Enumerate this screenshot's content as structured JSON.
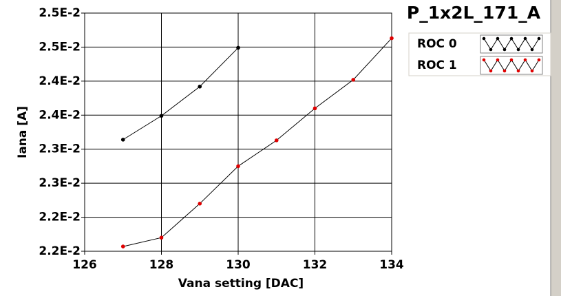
{
  "chart_data": {
    "type": "line",
    "title": "P_1x2L_171_A",
    "x_label": "Vana setting [DAC]",
    "y_label": "Iana [A]",
    "series": [
      {
        "name": "ROC 0",
        "color": "#000000",
        "x": [
          127,
          128,
          129,
          130
        ],
        "values": [
          0.02364,
          0.02399,
          0.02442,
          0.02499
        ]
      },
      {
        "name": "ROC 1",
        "color": "#e00000",
        "x": [
          127,
          128,
          129,
          130,
          131,
          132,
          133,
          134
        ],
        "values": [
          0.02207,
          0.0222,
          0.0227,
          0.02325,
          0.02363,
          0.0241,
          0.02452,
          0.02513
        ]
      }
    ],
    "xlim": [
      126,
      134
    ],
    "xticks": [
      126,
      128,
      130,
      132,
      134
    ],
    "ylim": [
      0.022,
      0.0255
    ],
    "yticks": [
      {
        "value": 0.022,
        "label": "2.2E-2"
      },
      {
        "value": 0.0225,
        "label": "2.2E-2"
      },
      {
        "value": 0.023,
        "label": "2.3E-2"
      },
      {
        "value": 0.0235,
        "label": "2.3E-2"
      },
      {
        "value": 0.024,
        "label": "2.4E-2"
      },
      {
        "value": 0.0245,
        "label": "2.4E-2"
      },
      {
        "value": 0.025,
        "label": "2.5E-2"
      },
      {
        "value": 0.0255,
        "label": "2.5E-2"
      }
    ],
    "grid": true
  }
}
